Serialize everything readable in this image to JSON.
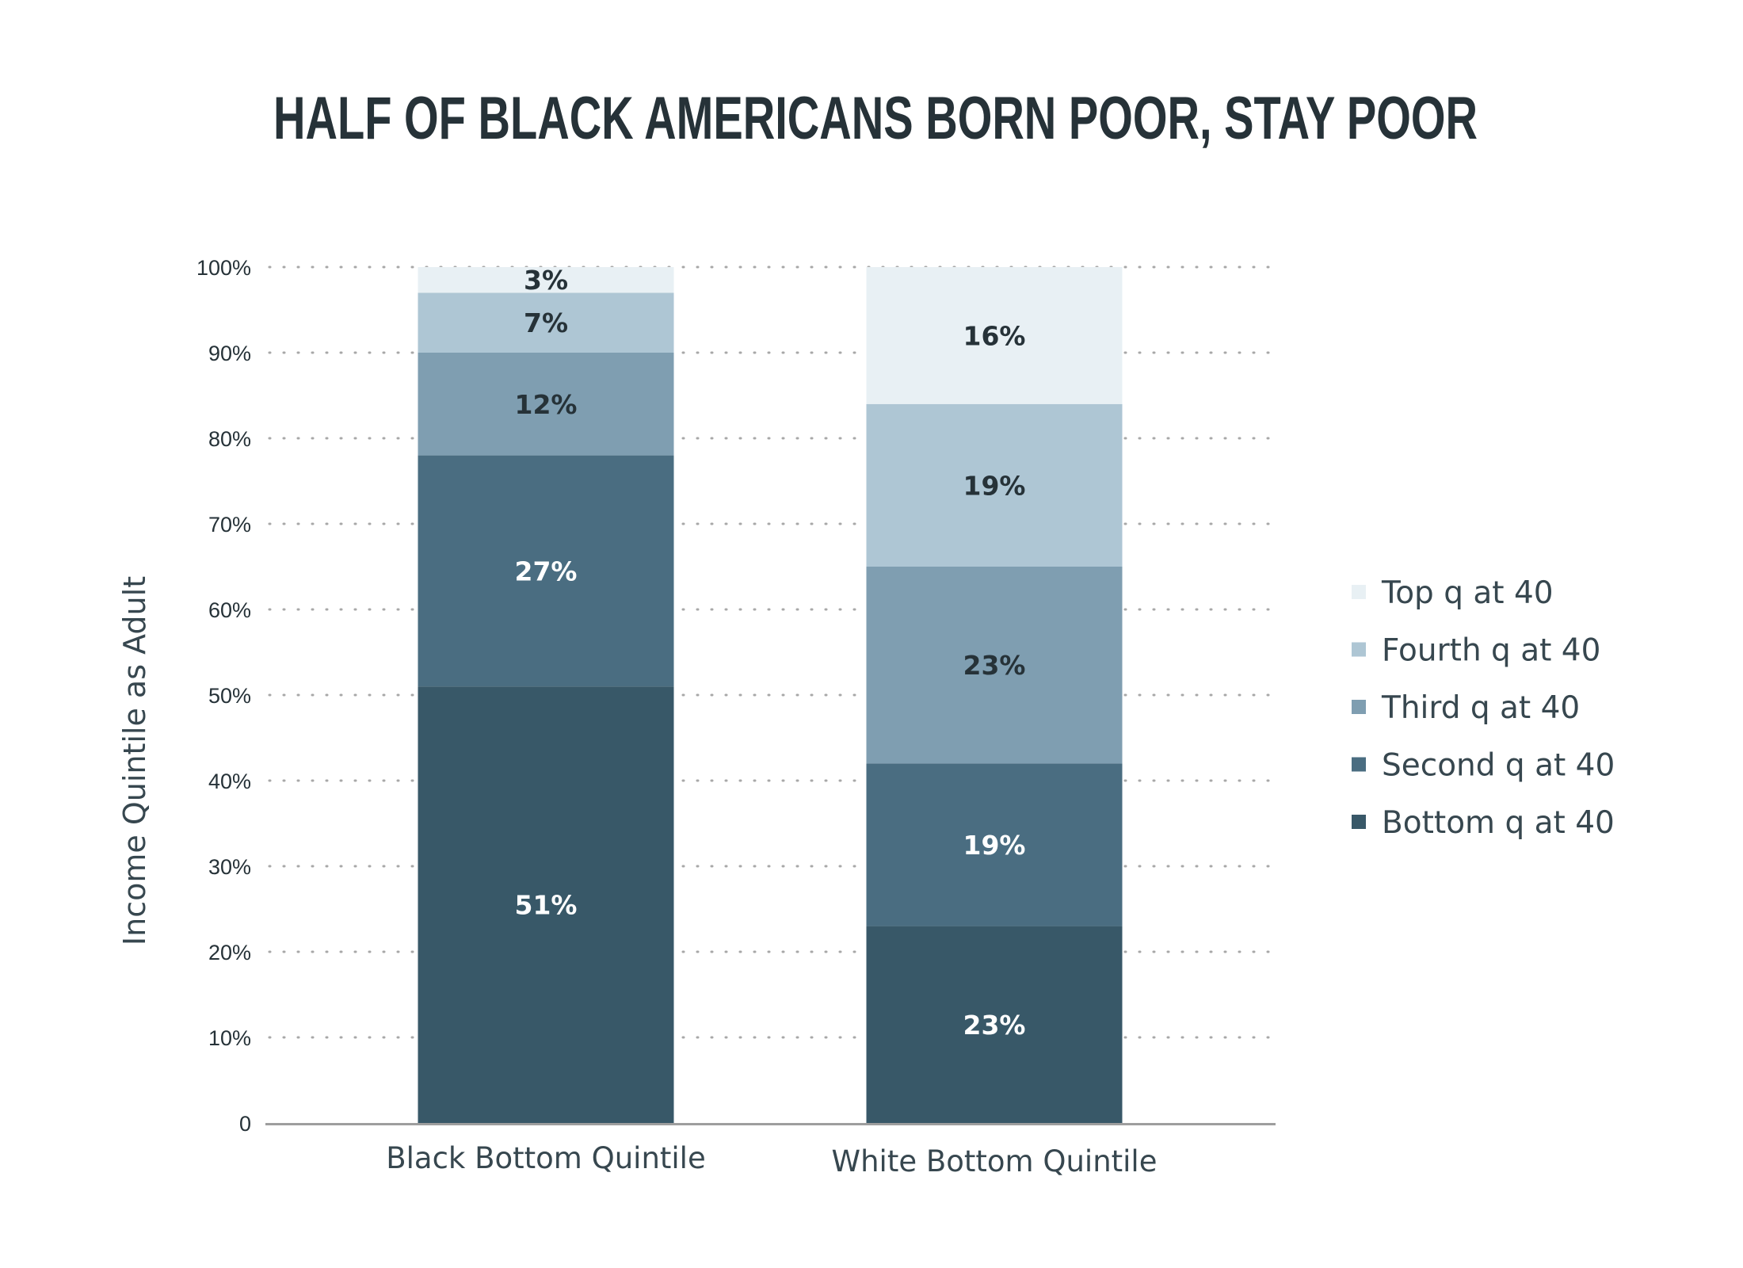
{
  "chart_data": {
    "type": "bar",
    "stacked": true,
    "title": "HALF OF BLACK AMERICANS BORN POOR, STAY POOR",
    "xlabel": "",
    "ylabel": "Income Quintile as Adult",
    "ylim": [
      0,
      100
    ],
    "yticks": [
      "0",
      "10%",
      "20%",
      "30%",
      "40%",
      "50%",
      "60%",
      "70%",
      "80%",
      "90%",
      "100%"
    ],
    "grid": true,
    "legend_position": "right",
    "categories": [
      "Black Bottom Quintile",
      "White Bottom Quintile"
    ],
    "series": [
      {
        "name": "Bottom q at 40",
        "values": [
          51,
          23
        ],
        "labels": [
          "51%",
          "23%"
        ],
        "color": "#385868",
        "label_color": "#ffffff"
      },
      {
        "name": "Second q at 40",
        "values": [
          27,
          19
        ],
        "labels": [
          "27%",
          "19%"
        ],
        "color": "#4a6d81",
        "label_color": "#ffffff"
      },
      {
        "name": "Third q at 40",
        "values": [
          12,
          23
        ],
        "labels": [
          "12%",
          "23%"
        ],
        "color": "#7f9eb1",
        "label_color": "#263238"
      },
      {
        "name": "Fourth q at 40",
        "values": [
          7,
          19
        ],
        "labels": [
          "7%",
          "19%"
        ],
        "color": "#aec6d4",
        "label_color": "#263238"
      },
      {
        "name": "Top q at 40",
        "values": [
          3,
          16
        ],
        "labels": [
          "3%",
          "16%"
        ],
        "color": "#e8f0f4",
        "label_color": "#263238"
      }
    ],
    "legend_order": [
      "Top q at 40",
      "Fourth q at 40",
      "Third q at 40",
      "Second q at 40",
      "Bottom q at 40"
    ]
  }
}
